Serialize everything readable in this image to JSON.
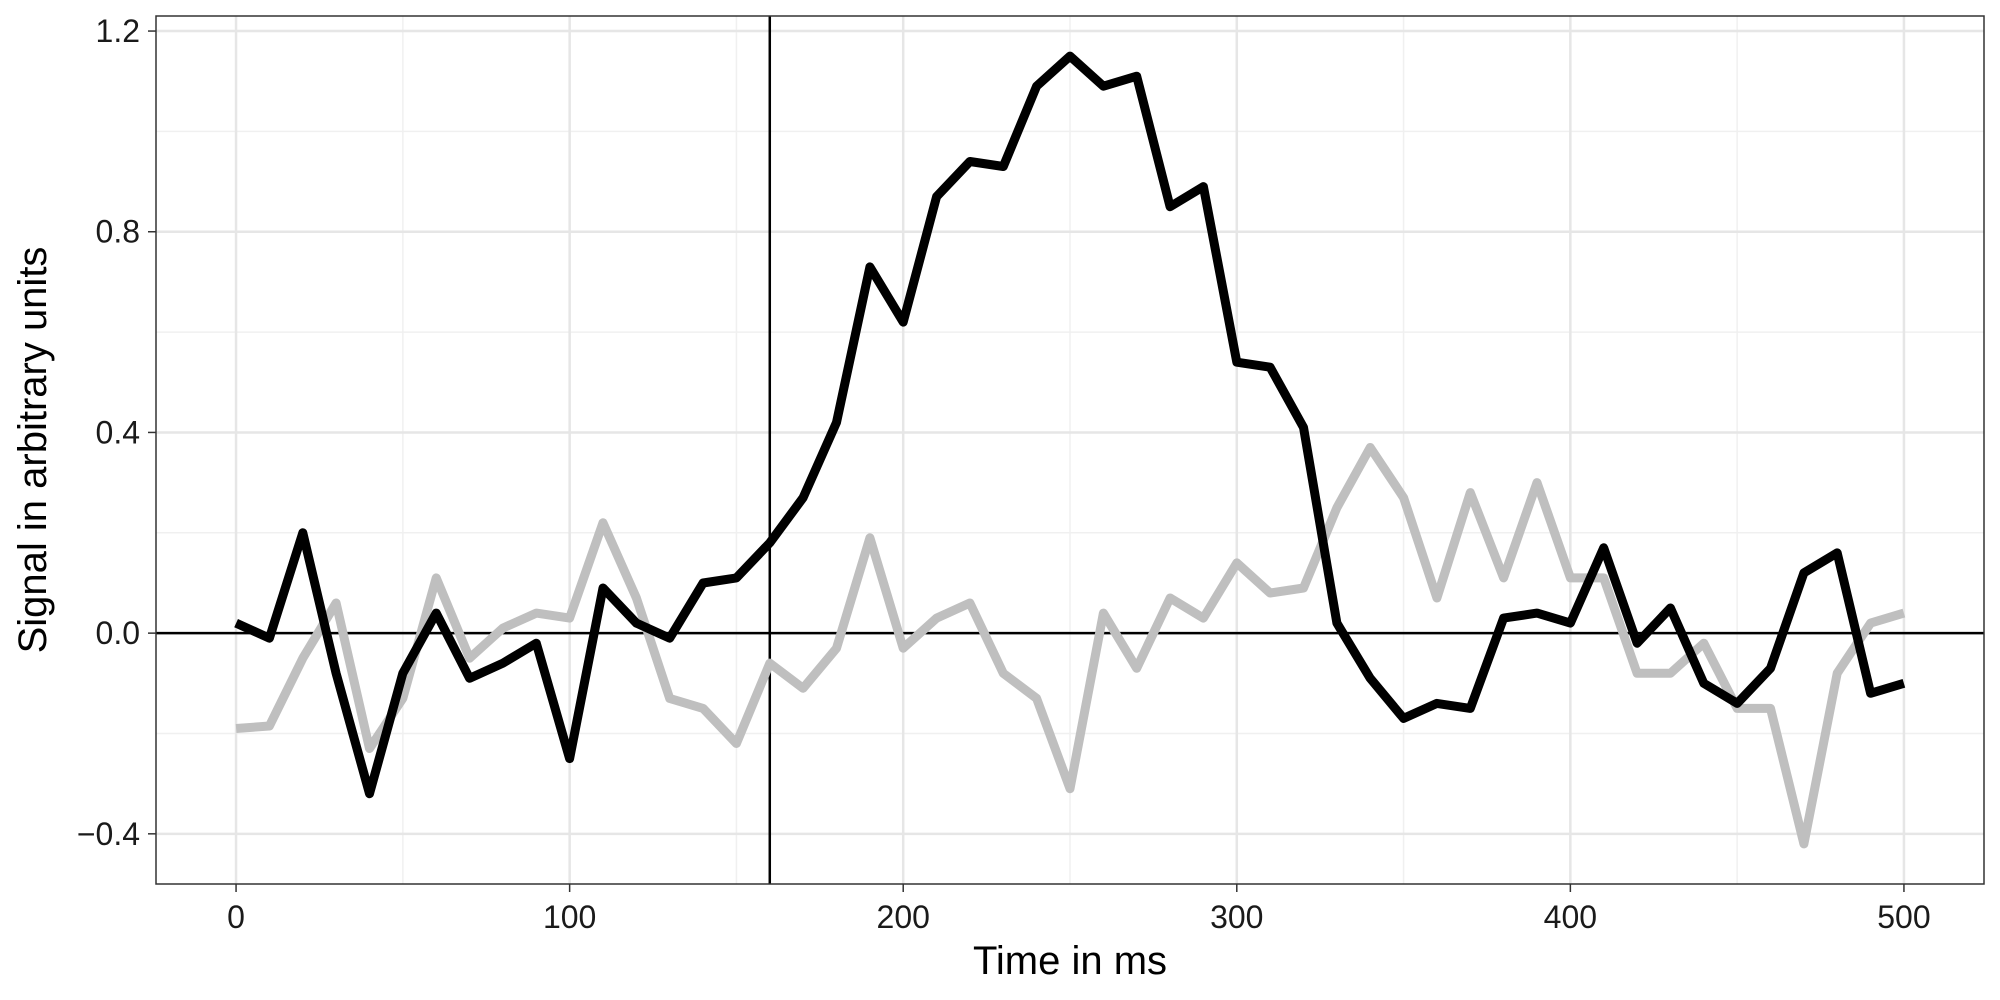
{
  "chart_data": {
    "type": "line",
    "title": "",
    "xlabel": "Time in ms",
    "ylabel": "Signal in arbitrary units",
    "xlim": [
      -24,
      524
    ],
    "ylim": [
      -0.5,
      1.23
    ],
    "x_ticks": [
      0,
      100,
      200,
      300,
      400,
      500
    ],
    "x_tick_labels": [
      "0",
      "100",
      "200",
      "300",
      "400",
      "500"
    ],
    "y_ticks": [
      -0.4,
      0.0,
      0.4,
      0.8,
      1.2
    ],
    "y_tick_labels": [
      "−0.4",
      "0.0",
      "0.4",
      "0.8",
      "1.2"
    ],
    "x_minor_ticks": [
      50,
      150,
      250,
      350,
      450
    ],
    "y_minor_ticks": [
      -0.2,
      0.2,
      0.6,
      1.0
    ],
    "grid": true,
    "reference_lines": {
      "vertical_x": 160,
      "horizontal_y": 0
    },
    "x": [
      0,
      10,
      20,
      30,
      40,
      50,
      60,
      70,
      80,
      90,
      100,
      110,
      120,
      130,
      140,
      150,
      160,
      170,
      180,
      190,
      200,
      210,
      220,
      230,
      240,
      250,
      260,
      270,
      280,
      290,
      300,
      310,
      320,
      330,
      340,
      350,
      360,
      370,
      380,
      390,
      400,
      410,
      420,
      430,
      440,
      450,
      460,
      470,
      480,
      490,
      500
    ],
    "series": [
      {
        "color": "#bfbfbf",
        "values": [
          -0.19,
          -0.185,
          -0.05,
          0.06,
          -0.23,
          -0.13,
          0.11,
          -0.05,
          0.01,
          0.04,
          0.03,
          0.22,
          0.07,
          -0.13,
          -0.15,
          -0.22,
          -0.06,
          -0.11,
          -0.03,
          0.19,
          -0.03,
          0.03,
          0.06,
          -0.08,
          -0.13,
          -0.31,
          0.04,
          -0.07,
          0.07,
          0.03,
          0.14,
          0.08,
          0.09,
          0.25,
          0.37,
          0.27,
          0.07,
          0.28,
          0.11,
          0.3,
          0.11,
          0.11,
          -0.08,
          -0.08,
          -0.02,
          -0.15,
          -0.15,
          -0.42,
          -0.08,
          0.02,
          0.04
        ]
      },
      {
        "color": "#000000",
        "values": [
          0.02,
          -0.01,
          0.2,
          -0.08,
          -0.32,
          -0.08,
          0.04,
          -0.09,
          -0.06,
          -0.02,
          -0.25,
          0.09,
          0.02,
          -0.01,
          0.1,
          0.11,
          0.18,
          0.27,
          0.42,
          0.73,
          0.62,
          0.87,
          0.94,
          0.93,
          1.09,
          1.15,
          1.09,
          1.11,
          0.85,
          0.89,
          0.54,
          0.53,
          0.41,
          0.02,
          -0.09,
          -0.17,
          -0.14,
          -0.15,
          0.03,
          0.04,
          0.02,
          0.17,
          -0.02,
          0.05,
          -0.1,
          -0.14,
          -0.07,
          0.12,
          0.16,
          -0.12,
          -0.1
        ]
      }
    ]
  }
}
